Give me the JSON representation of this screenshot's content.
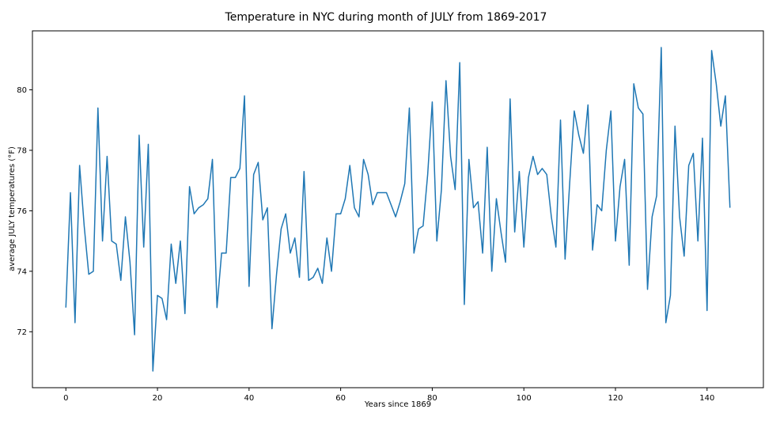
{
  "chart_data": {
    "type": "line",
    "title": "Temperature in NYC during month of JULY from 1869-2017",
    "xlabel": "Years since 1869",
    "ylabel": "average JULY temperatures (°F)",
    "xlim": [
      -7.3,
      152.3
    ],
    "ylim": [
      70.15,
      81.95
    ],
    "xticks": [
      0,
      20,
      40,
      60,
      80,
      100,
      120,
      140
    ],
    "yticks": [
      72,
      74,
      76,
      78,
      80
    ],
    "grid": false,
    "line_color": "#1f77b4",
    "series": [
      {
        "x": [
          0,
          1,
          2,
          3,
          4,
          5,
          6,
          7,
          8,
          9,
          10,
          11,
          12,
          13,
          14,
          15,
          16,
          17,
          18,
          19,
          20,
          21,
          22,
          23,
          24,
          25,
          26,
          27,
          28,
          29,
          30,
          31,
          32,
          33,
          34,
          35,
          36,
          37,
          38,
          39,
          40,
          41,
          42,
          43,
          44,
          45,
          46,
          47,
          48,
          49,
          50,
          51,
          52,
          53,
          54,
          55,
          56,
          57,
          58,
          59,
          60,
          61,
          62,
          63,
          64,
          65,
          66,
          67,
          68,
          69,
          70,
          71,
          72,
          73,
          74,
          75,
          76,
          77,
          78,
          79,
          80,
          81,
          82,
          83,
          84,
          85,
          86,
          87,
          88,
          89,
          90,
          91,
          92,
          93,
          94,
          95,
          96,
          97,
          98,
          99,
          100,
          101,
          102,
          103,
          104,
          105,
          106,
          107,
          108,
          109,
          110,
          111,
          112,
          113,
          114,
          115,
          116,
          117,
          118,
          119,
          120,
          121,
          122,
          123,
          124,
          125,
          126,
          127,
          128,
          129,
          130,
          131,
          132,
          133,
          134,
          135,
          136,
          137,
          138,
          139,
          140,
          141,
          142,
          143,
          144,
          145
        ],
        "values": [
          72.8,
          76.6,
          72.3,
          77.5,
          75.5,
          73.9,
          74.0,
          79.4,
          75.0,
          77.8,
          75.0,
          74.9,
          73.7,
          75.8,
          74.3,
          71.9,
          78.5,
          74.8,
          78.2,
          70.7,
          73.2,
          73.1,
          72.4,
          74.9,
          73.6,
          75.0,
          72.6,
          76.8,
          75.9,
          76.1,
          76.2,
          76.4,
          77.7,
          72.8,
          74.6,
          74.6,
          77.1,
          77.1,
          77.4,
          79.8,
          73.5,
          77.2,
          77.6,
          75.7,
          76.1,
          72.1,
          73.9,
          75.4,
          75.9,
          74.6,
          75.1,
          73.8,
          77.3,
          73.7,
          73.8,
          74.1,
          73.6,
          75.1,
          74.0,
          75.9,
          75.9,
          76.4,
          77.5,
          76.1,
          75.8,
          77.7,
          77.2,
          76.2,
          76.6,
          76.6,
          76.6,
          76.2,
          75.8,
          76.3,
          76.9,
          79.4,
          74.6,
          75.4,
          75.5,
          77.2,
          79.6,
          75.0,
          76.7,
          80.3,
          77.8,
          76.7,
          80.9,
          72.9,
          77.7,
          76.1,
          76.3,
          74.6,
          78.1,
          74.0,
          76.4,
          75.3,
          74.3,
          79.7,
          75.3,
          77.3,
          74.8,
          77.1,
          77.8,
          77.2,
          77.4,
          77.2,
          75.8,
          74.8,
          79.0,
          74.4,
          76.9,
          79.3,
          78.5,
          77.9,
          79.5,
          74.7,
          76.2,
          76.0,
          78.0,
          79.3,
          75.0,
          76.8,
          77.7,
          74.2,
          80.2,
          79.4,
          79.2,
          73.4,
          75.8,
          76.5,
          81.4,
          72.3,
          73.2,
          78.8,
          75.8,
          74.5,
          77.5,
          77.9,
          75.0,
          78.4,
          72.7,
          81.3,
          80.2,
          78.8,
          79.8,
          76.1
        ]
      }
    ]
  }
}
